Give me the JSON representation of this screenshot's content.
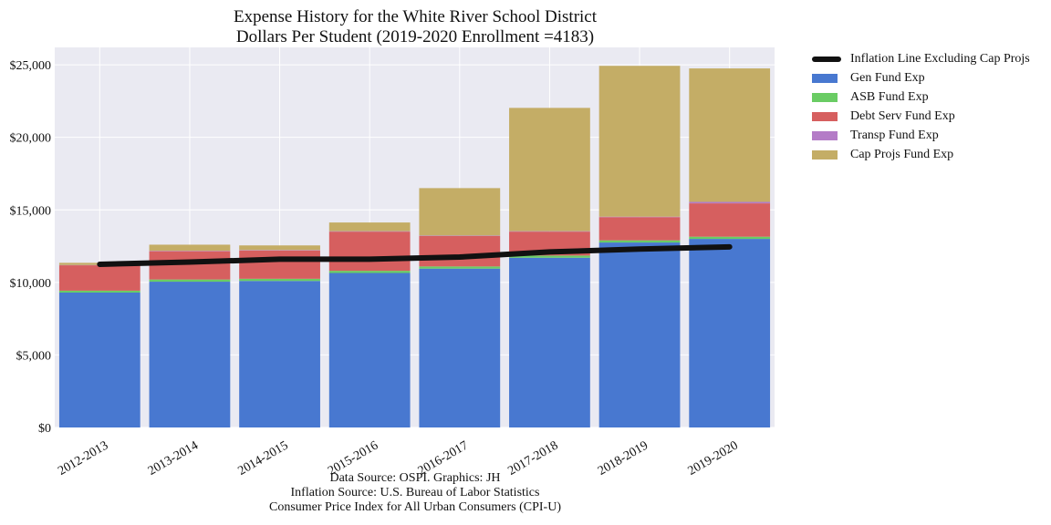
{
  "chart_data": {
    "type": "bar",
    "stacked": true,
    "title": "Expense History for the White River School District",
    "subtitle": "Dollars Per Student (2019-2020 Enrollment =4183)",
    "categories": [
      "2012-2013",
      "2013-2014",
      "2014-2015",
      "2015-2016",
      "2016-2017",
      "2017-2018",
      "2018-2019",
      "2019-2020"
    ],
    "series": [
      {
        "name": "Gen Fund Exp",
        "color": "#4878d0",
        "values": [
          9300,
          10050,
          10100,
          10650,
          10950,
          11700,
          12750,
          13000
        ]
      },
      {
        "name": "ASB Fund Exp",
        "color": "#6acc64",
        "values": [
          130,
          150,
          150,
          150,
          150,
          150,
          150,
          150
        ]
      },
      {
        "name": "Debt Serv Fund Exp",
        "color": "#d65f5f",
        "values": [
          1750,
          1950,
          1950,
          2700,
          2100,
          1650,
          1600,
          2300
        ]
      },
      {
        "name": "Transp Fund Exp",
        "color": "#b47cc7",
        "values": [
          20,
          30,
          30,
          30,
          30,
          30,
          30,
          100
        ]
      },
      {
        "name": "Cap Projs Fund Exp",
        "color": "#c4ad66",
        "values": [
          150,
          420,
          320,
          600,
          3270,
          8500,
          10400,
          9200
        ]
      }
    ],
    "line": {
      "name": "Inflation Line Excluding Cap Projs",
      "color": "#111111",
      "values": [
        11250,
        11400,
        11600,
        11600,
        11750,
        12100,
        12300,
        12450
      ]
    },
    "ylim": [
      0,
      26200
    ],
    "yticks": [
      0,
      5000,
      10000,
      15000,
      20000,
      25000
    ],
    "ytick_labels": [
      "$0",
      "$5,000",
      "$10,000",
      "$15,000",
      "$20,000",
      "$25,000"
    ],
    "grid": true,
    "legend_position": "outside-right"
  },
  "source_lines": [
    "Data Source: OSPI. Graphics: JH",
    "Inflation Source: U.S. Bureau of Labor Statistics",
    "Consumer Price Index for All Urban Consumers (CPI-U)"
  ]
}
